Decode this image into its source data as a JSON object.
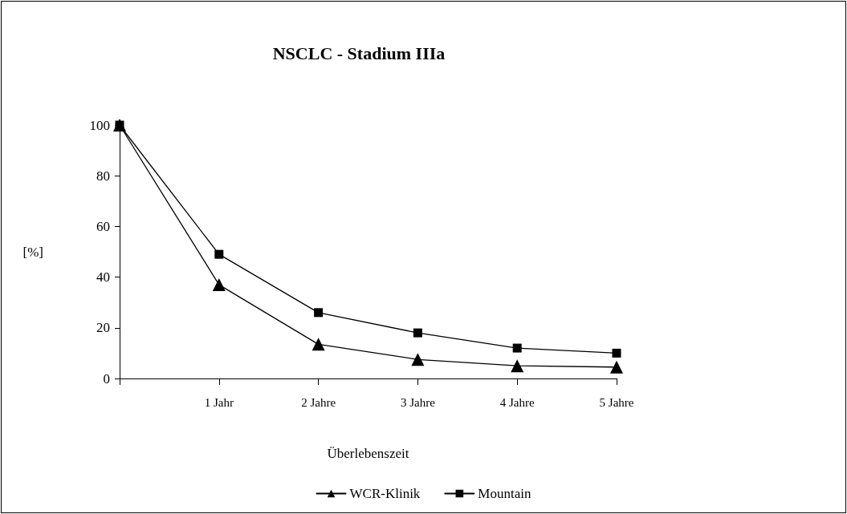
{
  "chart_data": {
    "type": "line",
    "title": "NSCLC - Stadium IIIa",
    "xlabel": "Überlebenszeit",
    "ylabel": "[%]",
    "categories": [
      null,
      "1 Jahr",
      "2 Jahre",
      "3 Jahre",
      "4 Jahre",
      "5 Jahre"
    ],
    "series": [
      {
        "name": "WCR-Klinik",
        "color": "#000000",
        "marker": "triangle",
        "values": [
          100,
          37,
          13.5,
          7.5,
          5,
          4.5
        ]
      },
      {
        "name": "Mountain",
        "color": "#000000",
        "marker": "square",
        "values": [
          100,
          49,
          26,
          18,
          12,
          10
        ]
      }
    ],
    "ylim": [
      0,
      100
    ],
    "yticks": [
      0,
      20,
      40,
      60,
      80,
      100
    ],
    "grid": false,
    "legend": "bottom",
    "line_style": "solid"
  }
}
